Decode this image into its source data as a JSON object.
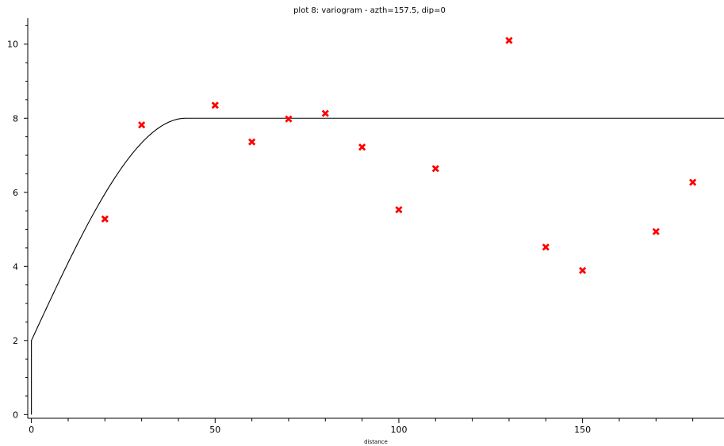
{
  "chart_data": {
    "type": "scatter",
    "title": "plot 8:  variogram - azth=157.5, dip=0",
    "xlabel": "distance",
    "ylabel": "",
    "xlim": [
      -1,
      188.5
    ],
    "ylim": [
      -0.1,
      10.7
    ],
    "x_ticks": [
      0,
      50,
      100,
      150
    ],
    "y_ticks": [
      0,
      2,
      4,
      6,
      8,
      10
    ],
    "grid": false,
    "series": [
      {
        "marker": "x",
        "color": "#ff0000",
        "points": [
          {
            "x": 20,
            "y": 5.28
          },
          {
            "x": 30,
            "y": 7.82
          },
          {
            "x": 50,
            "y": 8.35
          },
          {
            "x": 60,
            "y": 7.36
          },
          {
            "x": 70,
            "y": 7.98
          },
          {
            "x": 80,
            "y": 8.13
          },
          {
            "x": 90,
            "y": 7.22
          },
          {
            "x": 100,
            "y": 5.53
          },
          {
            "x": 110,
            "y": 6.64
          },
          {
            "x": 130,
            "y": 10.1
          },
          {
            "x": 140,
            "y": 4.52
          },
          {
            "x": 150,
            "y": 3.89
          },
          {
            "x": 170,
            "y": 4.94
          },
          {
            "x": 180,
            "y": 6.27
          }
        ]
      },
      {
        "style": "line",
        "color": "#000000",
        "model": "spherical",
        "nugget": 2.0,
        "sill": 8.0,
        "range": 42
      }
    ]
  }
}
